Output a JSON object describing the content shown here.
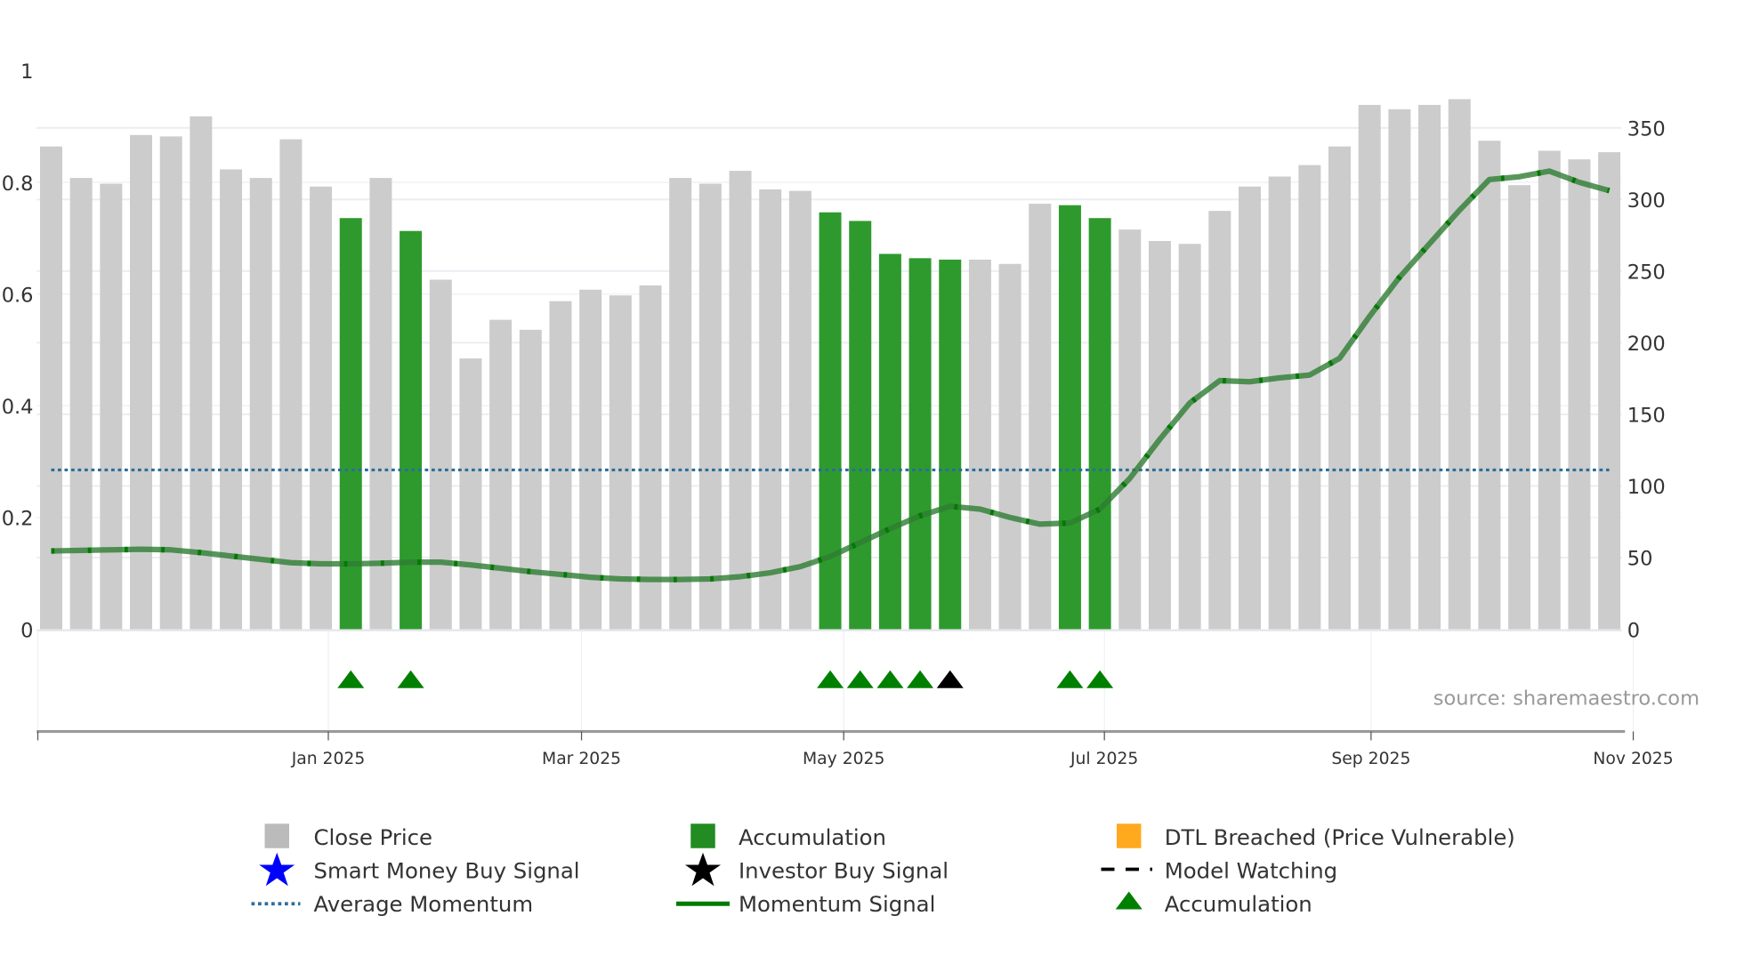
{
  "chart_data": {
    "type": "bar",
    "title": "",
    "source": "source: sharemaestro.com",
    "left_axis": {
      "ticks": [
        "0",
        "0.2",
        "0.4",
        "0.6",
        "0.8",
        "1"
      ],
      "tick_values": [
        0,
        0.2,
        0.4,
        0.6,
        0.8,
        1
      ],
      "range": [
        0,
        1
      ]
    },
    "right_axis": {
      "ticks": [
        "0",
        "50",
        "100",
        "150",
        "200",
        "250",
        "300",
        "350"
      ],
      "tick_values": [
        0,
        50,
        100,
        150,
        200,
        250,
        300,
        350
      ],
      "range": [
        0,
        390
      ]
    },
    "x_ticks": [
      {
        "label": "Jan 2025",
        "index": 9.25
      },
      {
        "label": "Mar 2025",
        "index": 17.7
      },
      {
        "label": "May 2025",
        "index": 26.45
      },
      {
        "label": "Jul 2025",
        "index": 35.15
      },
      {
        "label": "Sep 2025",
        "index": 44.05
      },
      {
        "label": "Nov 2025",
        "index": 52.8
      }
    ],
    "close_price": [
      337,
      315,
      311,
      345,
      344,
      358,
      321,
      315,
      342,
      309,
      287,
      315,
      278,
      244,
      189,
      216,
      209,
      229,
      237,
      233,
      240,
      315,
      311,
      320,
      307,
      306,
      291,
      285,
      262,
      259,
      258,
      258,
      255,
      297,
      296,
      287,
      279,
      271,
      269,
      292,
      309,
      316,
      324,
      337,
      366,
      363,
      366,
      370,
      341,
      310,
      334,
      328,
      333
    ],
    "accumulation_bars": [
      10,
      12,
      26,
      27,
      28,
      29,
      30,
      34,
      35
    ],
    "momentum_signal": [
      0.14,
      0.141,
      0.142,
      0.143,
      0.142,
      0.137,
      0.131,
      0.125,
      0.119,
      0.117,
      0.117,
      0.118,
      0.12,
      0.12,
      0.115,
      0.109,
      0.103,
      0.098,
      0.093,
      0.09,
      0.089,
      0.089,
      0.09,
      0.094,
      0.101,
      0.112,
      0.13,
      0.155,
      0.18,
      0.203,
      0.22,
      0.215,
      0.2,
      0.188,
      0.19,
      0.215,
      0.27,
      0.34,
      0.405,
      0.445,
      0.443,
      0.45,
      0.455,
      0.485,
      0.56,
      0.63,
      0.69,
      0.75,
      0.805,
      0.81,
      0.82,
      0.8,
      0.785
    ],
    "average_momentum": 0.285,
    "accumulation_markers": [
      10,
      12,
      26,
      27,
      28,
      29,
      34,
      35
    ],
    "investor_buy_markers": [
      30
    ],
    "colors": {
      "close": "#cccccc",
      "accumulation": "#2e9a2e",
      "momentum": "#2e7d32",
      "momentum_dash": "#007a00",
      "average": "#2c6e9a",
      "marker_green": "#008000",
      "marker_black": "#000000",
      "dtl": "#ffa91f",
      "smart": "#0000ff"
    },
    "legend": {
      "placement": "bottom",
      "items": [
        {
          "label": "Close Price",
          "icon": "gray-square"
        },
        {
          "label": "Accumulation",
          "icon": "green-square"
        },
        {
          "label": "DTL Breached (Price Vulnerable)",
          "icon": "orange-square"
        },
        {
          "label": "Smart Money Buy Signal",
          "icon": "blue-star"
        },
        {
          "label": "Investor Buy Signal",
          "icon": "black-star"
        },
        {
          "label": "Model Watching",
          "icon": "dashed-line"
        },
        {
          "label": "Average Momentum",
          "icon": "dotted-line"
        },
        {
          "label": "Momentum Signal",
          "icon": "solid-line"
        },
        {
          "label": "Accumulation",
          "icon": "green-triangle"
        }
      ]
    }
  }
}
